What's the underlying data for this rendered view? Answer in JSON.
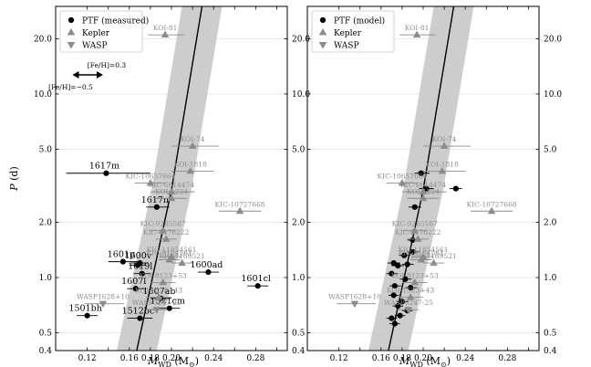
{
  "chart_data": [
    {
      "type": "scatter",
      "panel": "left",
      "xlabel": "M_WD (M⊙)",
      "ylabel": "P (d)",
      "xlim": [
        0.09,
        0.31
      ],
      "ylim": [
        0.4,
        30
      ],
      "yscale": "log",
      "xticks": [
        0.12,
        0.14,
        0.16,
        0.18,
        0.2,
        0.22,
        0.24,
        0.26,
        0.28,
        0.3
      ],
      "xtick_labels": [
        "0.12",
        "",
        "0.16",
        "0.18",
        "0.20",
        "",
        "0.24",
        "",
        "0.28",
        ""
      ],
      "yticks": [
        0.4,
        0.5,
        1.0,
        2.0,
        5.0,
        10.0,
        20.0
      ],
      "ytick_labels": [
        "0.4",
        "0.5",
        "1.0",
        "2.0",
        "5.0",
        "10.0",
        "20.0"
      ],
      "legend": [
        "PTF (measured)",
        "Kepler",
        "WASP"
      ],
      "legend_position": "top-left",
      "annotation": {
        "arrow_label": "[Fe/H]=0.3",
        "arrow_label_2": "[Fe/H]=−0.5"
      },
      "relation": {
        "line": [
          [
            0.167,
            0.4
          ],
          [
            0.2,
            3.0
          ],
          [
            0.229,
            30
          ]
        ],
        "band_halfwidth_mass": 0.019
      },
      "series": [
        {
          "name": "PTF (measured)",
          "marker": "circle",
          "points": [
            {
              "label": "1617m",
              "x": 0.138,
              "y": 3.7,
              "xerr": [
                0.1,
                0.18
              ]
            },
            {
              "label": "1617n",
              "x": 0.186,
              "y": 2.42,
              "xerr": [
                0.176,
                0.198
              ]
            },
            {
              "label": "1601p",
              "x": 0.154,
              "y": 1.22,
              "xerr": [
                0.14,
                0.168
              ]
            },
            {
              "label": "1600v",
              "x": 0.17,
              "y": 1.2,
              "xerr": [
                0.162,
                0.178
              ]
            },
            {
              "label": "",
              "x": 0.168,
              "y": 1.17,
              "xerr": [
                0.16,
                0.176
              ]
            },
            {
              "label": "1619l",
              "x": 0.172,
              "y": 1.05,
              "xerr": [
                0.164,
                0.18
              ]
            },
            {
              "label": "1600ad",
              "x": 0.235,
              "y": 1.07,
              "xerr": [
                0.225,
                0.245
              ]
            },
            {
              "label": "1601cl",
              "x": 0.282,
              "y": 0.9,
              "xerr": [
                0.272,
                0.292
              ]
            },
            {
              "label": "1607l",
              "x": 0.166,
              "y": 0.87,
              "xerr": [
                0.158,
                0.174
              ]
            },
            {
              "label": "1607ab",
              "x": 0.19,
              "y": 0.77,
              "xerr": [
                0.18,
                0.2
              ]
            },
            {
              "label": "1521cm",
              "x": 0.198,
              "y": 0.68,
              "xerr": [
                0.188,
                0.208
              ]
            },
            {
              "label": "1512bc",
              "x": 0.17,
              "y": 0.6,
              "xerr": [
                0.158,
                0.182
              ]
            },
            {
              "label": "1501bh",
              "x": 0.12,
              "y": 0.62,
              "xerr": [
                0.11,
                0.13
              ]
            }
          ]
        },
        {
          "name": "Kepler",
          "marker": "triangle-up",
          "points": [
            {
              "label": "KOI-81",
              "x": 0.194,
              "y": 21.0,
              "xerr": [
                0.178,
                0.212
              ]
            },
            {
              "label": "KOI-74",
              "x": 0.22,
              "y": 5.2,
              "xerr": [
                0.2,
                0.245
              ]
            },
            {
              "label": "KOI-1818",
              "x": 0.218,
              "y": 3.8,
              "xerr": [
                0.2,
                0.24
              ]
            },
            {
              "label": "KIC-10657664",
              "x": 0.18,
              "y": 3.27,
              "xerr": [
                0.165,
                0.195
              ]
            },
            {
              "label": "KIC-6614474",
              "x": 0.2,
              "y": 2.93,
              "xerr": [
                0.18,
                0.222
              ]
            },
            {
              "label": "KOI-1224",
              "x": 0.2,
              "y": 2.7,
              "xerr": [
                0.185,
                0.215
              ]
            },
            {
              "label": "KIC-10727668",
              "x": 0.265,
              "y": 2.3,
              "xerr": [
                0.245,
                0.285
              ]
            },
            {
              "label": "KIC-9285587",
              "x": 0.192,
              "y": 1.8,
              "xerr": [
                0.18,
                0.204
              ]
            },
            {
              "label": "KIC-8176222",
              "x": 0.195,
              "y": 1.62,
              "xerr": [
                0.185,
                0.205
              ]
            },
            {
              "label": "KIC-11854561",
              "x": 0.2,
              "y": 1.3,
              "xerr": [
                0.19,
                0.21
              ]
            },
            {
              "label": "KIC-9164561",
              "x": 0.198,
              "y": 1.25,
              "xerr": [
                0.188,
                0.208
              ]
            },
            {
              "label": "KIC-4169521",
              "x": 0.21,
              "y": 1.2,
              "xerr": [
                0.2,
                0.22
              ]
            },
            {
              "label": "KOI-8123+53",
              "x": 0.192,
              "y": 0.94,
              "xerr": [
                0.18,
                0.204
              ]
            },
            {
              "label": "KOI-1523+43",
              "x": 0.188,
              "y": 0.78,
              "xerr": [
                0.176,
                0.2
              ]
            }
          ]
        },
        {
          "name": "WASP",
          "marker": "triangle-down",
          "points": [
            {
              "label": "WASP1628+10",
              "x": 0.135,
              "y": 0.72,
              "xerr": [
                0.118,
                0.155
              ]
            },
            {
              "label": "WASP0247-25",
              "x": 0.186,
              "y": 0.668,
              "xerr": [
                0.176,
                0.196
              ]
            }
          ]
        }
      ]
    },
    {
      "type": "scatter",
      "panel": "right",
      "xlabel": "M_WD (M⊙)",
      "ylabel": "",
      "xlim": [
        0.09,
        0.31
      ],
      "ylim": [
        0.4,
        30
      ],
      "yscale": "log",
      "xticks": [
        0.12,
        0.14,
        0.16,
        0.18,
        0.2,
        0.22,
        0.24,
        0.26,
        0.28,
        0.3
      ],
      "xtick_labels": [
        "0.12",
        "",
        "0.16",
        "0.18",
        "0.20",
        "",
        "0.24",
        "",
        "0.28",
        ""
      ],
      "yticks": [
        0.4,
        0.5,
        1.0,
        2.0,
        5.0,
        10.0,
        20.0
      ],
      "ytick_labels": [
        "0.4",
        "0.5",
        "1.0",
        "2.0",
        "5.0",
        "10.0",
        "20.0"
      ],
      "legend": [
        "PTF (model)",
        "Kepler",
        "WASP"
      ],
      "legend_position": "top-left",
      "relation": {
        "line": [
          [
            0.167,
            0.4
          ],
          [
            0.2,
            3.0
          ],
          [
            0.229,
            30
          ]
        ],
        "band_halfwidth_mass": 0.019
      },
      "series": [
        {
          "name": "PTF (model)",
          "marker": "circle",
          "points": [
            {
              "label": "",
              "x": 0.198,
              "y": 3.7,
              "xerr": [
                0.192,
                0.206
              ]
            },
            {
              "label": "",
              "x": 0.203,
              "y": 3.05,
              "xerr": [
                0.196,
                0.21
              ]
            },
            {
              "label": "",
              "x": 0.231,
              "y": 3.05,
              "xerr": [
                0.225,
                0.237
              ]
            },
            {
              "label": "",
              "x": 0.192,
              "y": 2.42,
              "xerr": [
                0.186,
                0.198
              ]
            },
            {
              "label": "",
              "x": 0.19,
              "y": 1.6,
              "xerr": [
                0.185,
                0.196
              ]
            },
            {
              "label": "",
              "x": 0.19,
              "y": 1.38,
              "xerr": [
                0.185,
                0.196
              ]
            },
            {
              "label": "",
              "x": 0.182,
              "y": 1.32,
              "xerr": [
                0.177,
                0.188
              ]
            },
            {
              "label": "",
              "x": 0.172,
              "y": 1.2,
              "xerr": [
                0.166,
                0.178
              ]
            },
            {
              "label": "",
              "x": 0.176,
              "y": 1.16,
              "xerr": [
                0.17,
                0.182
              ]
            },
            {
              "label": "",
              "x": 0.185,
              "y": 1.18,
              "xerr": [
                0.18,
                0.191
              ]
            },
            {
              "label": "",
              "x": 0.17,
              "y": 1.05,
              "xerr": [
                0.165,
                0.176
              ]
            },
            {
              "label": "",
              "x": 0.183,
              "y": 0.98,
              "xerr": [
                0.178,
                0.189
              ]
            },
            {
              "label": "",
              "x": 0.173,
              "y": 0.9,
              "xerr": [
                0.168,
                0.179
              ]
            },
            {
              "label": "",
              "x": 0.188,
              "y": 0.88,
              "xerr": [
                0.183,
                0.194
              ]
            },
            {
              "label": "",
              "x": 0.172,
              "y": 0.8,
              "xerr": [
                0.167,
                0.177
              ]
            },
            {
              "label": "",
              "x": 0.18,
              "y": 0.74,
              "xerr": [
                0.175,
                0.186
              ]
            },
            {
              "label": "",
              "x": 0.176,
              "y": 0.7,
              "xerr": [
                0.171,
                0.181
              ]
            },
            {
              "label": "",
              "x": 0.185,
              "y": 0.66,
              "xerr": [
                0.18,
                0.19
              ]
            },
            {
              "label": "",
              "x": 0.178,
              "y": 0.62,
              "xerr": [
                0.173,
                0.183
              ]
            },
            {
              "label": "",
              "x": 0.17,
              "y": 0.6,
              "xerr": [
                0.165,
                0.175
              ]
            },
            {
              "label": "",
              "x": 0.173,
              "y": 0.56,
              "xerr": [
                0.168,
                0.178
              ]
            }
          ]
        },
        {
          "name": "Kepler",
          "marker": "triangle-up",
          "points": [
            {
              "label": "KOI-81",
              "x": 0.194,
              "y": 21.0,
              "xerr": [
                0.178,
                0.212
              ]
            },
            {
              "label": "KOI-74",
              "x": 0.22,
              "y": 5.2,
              "xerr": [
                0.2,
                0.245
              ]
            },
            {
              "label": "KOI-1818",
              "x": 0.218,
              "y": 3.8,
              "xerr": [
                0.2,
                0.24
              ]
            },
            {
              "label": "KIC-10657664",
              "x": 0.18,
              "y": 3.27,
              "xerr": [
                0.165,
                0.195
              ]
            },
            {
              "label": "KIC-6614474",
              "x": 0.2,
              "y": 2.93,
              "xerr": [
                0.18,
                0.222
              ]
            },
            {
              "label": "KOI-1224",
              "x": 0.2,
              "y": 2.7,
              "xerr": [
                0.185,
                0.215
              ]
            },
            {
              "label": "KIC-10727668",
              "x": 0.265,
              "y": 2.3,
              "xerr": [
                0.245,
                0.285
              ]
            },
            {
              "label": "KIC-9285587",
              "x": 0.192,
              "y": 1.8,
              "xerr": [
                0.18,
                0.204
              ]
            },
            {
              "label": "KIC-8176222",
              "x": 0.195,
              "y": 1.62,
              "xerr": [
                0.185,
                0.205
              ]
            },
            {
              "label": "KIC-11854561",
              "x": 0.2,
              "y": 1.3,
              "xerr": [
                0.19,
                0.21
              ]
            },
            {
              "label": "KIC-9164561",
              "x": 0.198,
              "y": 1.25,
              "xerr": [
                0.188,
                0.208
              ]
            },
            {
              "label": "KIC-4169521",
              "x": 0.21,
              "y": 1.2,
              "xerr": [
                0.2,
                0.22
              ]
            },
            {
              "label": "KOI-8123+53",
              "x": 0.192,
              "y": 0.94,
              "xerr": [
                0.18,
                0.204
              ]
            },
            {
              "label": "KOI-1523+43",
              "x": 0.188,
              "y": 0.78,
              "xerr": [
                0.176,
                0.2
              ]
            }
          ]
        },
        {
          "name": "WASP",
          "marker": "triangle-down",
          "points": [
            {
              "label": "WASP1628+10",
              "x": 0.135,
              "y": 0.72,
              "xerr": [
                0.118,
                0.155
              ]
            },
            {
              "label": "WASP0247-25",
              "x": 0.186,
              "y": 0.668,
              "xerr": [
                0.176,
                0.196
              ]
            }
          ]
        }
      ]
    }
  ],
  "colors": {
    "ptf": "#000000",
    "kepler_wasp": "#8c8c8c",
    "band": "#cdcdcd",
    "grid": "#e6e6e6",
    "axis": "#000000"
  }
}
